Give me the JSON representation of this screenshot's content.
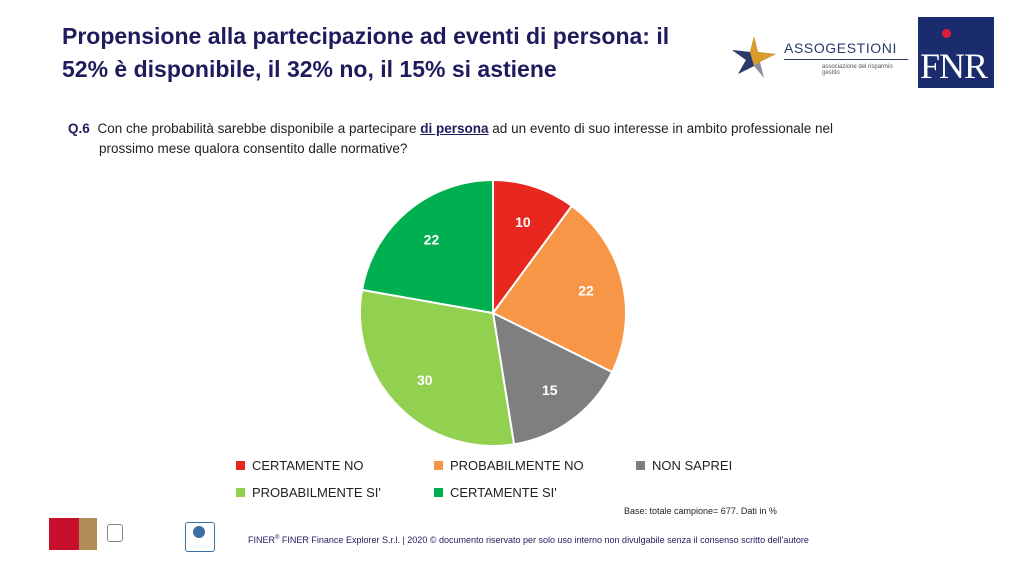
{
  "title": {
    "line1": "Propensione alla partecipazione ad eventi di persona: il",
    "line2": "52% è disponibile, il 32% no, il 15% si astiene"
  },
  "logos": {
    "assogestioni_name": "ASSOGESTIONI",
    "assogestioni_tagline": "associazione del risparmio gestito",
    "fnr_text": "FNR"
  },
  "question": {
    "number": "Q.6",
    "text_before": "Con che probabilità sarebbe disponibile a partecipare",
    "highlight": "di persona",
    "text_after": "ad un evento di suo interesse in ambito professionale nel",
    "line2": "prossimo mese qualora consentito dalle normative?"
  },
  "chart_data": {
    "type": "pie",
    "title": "",
    "start_angle_deg": 0,
    "direction": "clockwise",
    "slices": [
      {
        "label": "CERTAMENTE NO",
        "value": 10,
        "color": "#e8281e"
      },
      {
        "label": "PROBABILMENTE NO",
        "value": 22,
        "color": "#f79646"
      },
      {
        "label": "NON SAPREI",
        "value": 15,
        "color": "#7f7f7f"
      },
      {
        "label": "PROBABILMENTE SI'",
        "value": 30,
        "color": "#92d050"
      },
      {
        "label": "CERTAMENTE SI'",
        "value": 22,
        "color": "#00b050"
      }
    ],
    "legend_position": "bottom"
  },
  "base_note": "Base: totale campione= 677. Dati in %",
  "footer": {
    "brand": "FINER",
    "reg": "®",
    "text": " FINER Finance Explorer S.r.l. | 2020 © documento riservato per solo uso interno non divulgabile senza il consenso scritto dell'autore"
  }
}
